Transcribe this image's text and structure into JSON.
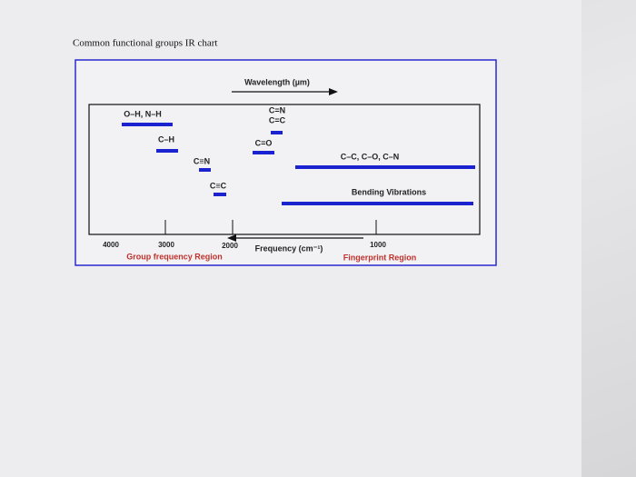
{
  "header": {
    "title": "Common functional groups IR chart"
  },
  "chart": {
    "wavelength_label": "Wavelength (µm)",
    "frequency_label": "Frequency (cm⁻¹)",
    "ticks": [
      "4000",
      "3000",
      "2000",
      "1000"
    ],
    "regions": [
      "Group frequency Region",
      "Fingerprint Region"
    ],
    "groups": [
      "O–H, N–H",
      "C–H",
      "C≡N",
      "C≡C",
      "C=N",
      "C=C",
      "C=O",
      "C–C, C–O, C–N",
      "Bending Vibrations"
    ]
  }
}
